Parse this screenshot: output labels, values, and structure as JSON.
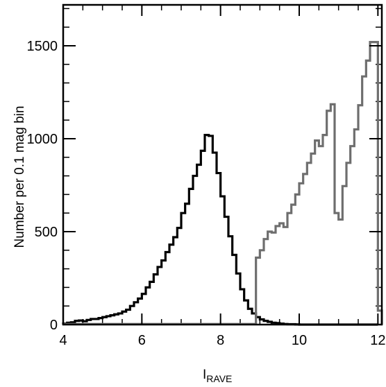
{
  "chart_data": {
    "type": "histogram",
    "xlabel_main": "I",
    "xlabel_sub": "RAVE",
    "ylabel": "Number per 0.1 mag bin",
    "xlim": [
      4,
      12.1
    ],
    "ylim": [
      0,
      1720
    ],
    "x_ticks": [
      4,
      6,
      8,
      10,
      12
    ],
    "y_ticks": [
      0,
      500,
      1000,
      1500
    ],
    "x_minor_step": 0.5,
    "y_minor_step": 100,
    "grid": false,
    "series": [
      {
        "color": "#000000",
        "bin_width": 0.1,
        "bin_starts": [
          4.0,
          4.1,
          4.2,
          4.3,
          4.4,
          4.5,
          4.6,
          4.7,
          4.8,
          4.9,
          5.0,
          5.1,
          5.2,
          5.3,
          5.4,
          5.5,
          5.6,
          5.7,
          5.8,
          5.9,
          6.0,
          6.1,
          6.2,
          6.3,
          6.4,
          6.5,
          6.6,
          6.7,
          6.8,
          6.9,
          7.0,
          7.1,
          7.2,
          7.3,
          7.4,
          7.5,
          7.6,
          7.7,
          7.8,
          7.9,
          8.0,
          8.1,
          8.2,
          8.3,
          8.4,
          8.5,
          8.6,
          8.7,
          8.8,
          8.9,
          9.0,
          9.1,
          9.2,
          9.3,
          9.4,
          9.5,
          9.6,
          9.7,
          9.8,
          9.9,
          10.0,
          10.1,
          10.2,
          10.3,
          10.4,
          10.5,
          10.6,
          10.7,
          10.8,
          10.9,
          11.0,
          11.1,
          11.2,
          11.3,
          11.4,
          11.5,
          11.6,
          11.7,
          11.8,
          11.9
        ],
        "counts": [
          5,
          10,
          12,
          20,
          22,
          18,
          25,
          30,
          30,
          35,
          40,
          45,
          50,
          55,
          60,
          70,
          80,
          100,
          120,
          140,
          165,
          200,
          230,
          270,
          310,
          345,
          390,
          430,
          470,
          520,
          600,
          650,
          730,
          800,
          860,
          935,
          1020,
          1015,
          925,
          815,
          690,
          580,
          475,
          375,
          275,
          190,
          130,
          85,
          60,
          40,
          28,
          20,
          15,
          10,
          8,
          5,
          3,
          2,
          2,
          1,
          0,
          0,
          0,
          0,
          0,
          0,
          0,
          0,
          0,
          0,
          0,
          0,
          0,
          0,
          0,
          0,
          0,
          0,
          0,
          0
        ]
      },
      {
        "color": "#6e6e6e",
        "bin_width": 0.1,
        "bin_starts": [
          4.0,
          4.1,
          4.2,
          4.3,
          4.4,
          4.5,
          4.6,
          4.7,
          4.8,
          4.9,
          5.0,
          5.1,
          5.2,
          5.3,
          5.4,
          5.5,
          5.6,
          5.7,
          5.8,
          5.9,
          6.0,
          6.1,
          6.2,
          6.3,
          6.4,
          6.5,
          6.6,
          6.7,
          6.8,
          6.9,
          7.0,
          7.1,
          7.2,
          7.3,
          7.4,
          7.5,
          7.6,
          7.7,
          7.8,
          7.9,
          8.0,
          8.1,
          8.2,
          8.3,
          8.4,
          8.5,
          8.6,
          8.7,
          8.8,
          8.9,
          9.0,
          9.1,
          9.2,
          9.3,
          9.4,
          9.5,
          9.6,
          9.7,
          9.8,
          9.9,
          10.0,
          10.1,
          10.2,
          10.3,
          10.4,
          10.5,
          10.6,
          10.7,
          10.8,
          10.9,
          11.0,
          11.1,
          11.2,
          11.3,
          11.4,
          11.5,
          11.6,
          11.7,
          11.8,
          11.9
        ],
        "counts": [
          0,
          0,
          0,
          0,
          0,
          0,
          0,
          0,
          0,
          0,
          0,
          0,
          0,
          0,
          0,
          0,
          0,
          0,
          0,
          0,
          0,
          0,
          0,
          0,
          0,
          0,
          0,
          0,
          0,
          0,
          0,
          0,
          0,
          0,
          0,
          0,
          0,
          0,
          0,
          0,
          0,
          0,
          0,
          0,
          0,
          0,
          0,
          0,
          0,
          0,
          0,
          0,
          0,
          0,
          0,
          0,
          0,
          0,
          0,
          0,
          0,
          0,
          0,
          0,
          0,
          0,
          0,
          0,
          0,
          0,
          0,
          0,
          0,
          0,
          0,
          0,
          0,
          0,
          0,
          0
        ],
        "segments": [
          {
            "x_start": 4.0,
            "x_end": 8.9,
            "count": 3
          },
          {
            "x_start": 8.9,
            "x_end": 9.0,
            "count": 360
          },
          {
            "x_start": 9.0,
            "x_end": 9.1,
            "count": 400
          },
          {
            "x_start": 9.1,
            "x_end": 9.2,
            "count": 460
          },
          {
            "x_start": 9.2,
            "x_end": 9.3,
            "count": 500
          },
          {
            "x_start": 9.3,
            "x_end": 9.4,
            "count": 495
          },
          {
            "x_start": 9.4,
            "x_end": 9.5,
            "count": 530
          },
          {
            "x_start": 9.5,
            "x_end": 9.6,
            "count": 545
          },
          {
            "x_start": 9.6,
            "x_end": 9.7,
            "count": 525
          },
          {
            "x_start": 9.7,
            "x_end": 9.8,
            "count": 600
          },
          {
            "x_start": 9.8,
            "x_end": 9.9,
            "count": 645
          },
          {
            "x_start": 9.9,
            "x_end": 10.0,
            "count": 700
          },
          {
            "x_start": 10.0,
            "x_end": 10.1,
            "count": 760
          },
          {
            "x_start": 10.1,
            "x_end": 10.2,
            "count": 810
          },
          {
            "x_start": 10.2,
            "x_end": 10.3,
            "count": 870
          },
          {
            "x_start": 10.3,
            "x_end": 10.4,
            "count": 920
          },
          {
            "x_start": 10.4,
            "x_end": 10.5,
            "count": 990
          },
          {
            "x_start": 10.5,
            "x_end": 10.6,
            "count": 960
          },
          {
            "x_start": 10.6,
            "x_end": 10.7,
            "count": 1020
          },
          {
            "x_start": 10.7,
            "x_end": 10.8,
            "count": 1150
          },
          {
            "x_start": 10.8,
            "x_end": 10.9,
            "count": 1185
          },
          {
            "x_start": 10.9,
            "x_end": 11.0,
            "count": 600
          },
          {
            "x_start": 11.0,
            "x_end": 11.1,
            "count": 565
          },
          {
            "x_start": 11.1,
            "x_end": 11.2,
            "count": 745
          },
          {
            "x_start": 11.2,
            "x_end": 11.3,
            "count": 870
          },
          {
            "x_start": 11.3,
            "x_end": 11.4,
            "count": 960
          },
          {
            "x_start": 11.4,
            "x_end": 11.5,
            "count": 1050
          },
          {
            "x_start": 11.5,
            "x_end": 11.6,
            "count": 1180
          },
          {
            "x_start": 11.6,
            "x_end": 11.7,
            "count": 1335
          },
          {
            "x_start": 11.7,
            "x_end": 11.8,
            "count": 1420
          },
          {
            "x_start": 11.8,
            "x_end": 11.9,
            "count": 1520
          },
          {
            "x_start": 11.9,
            "x_end": 12.0,
            "count": 1520
          },
          {
            "x_start": 12.0,
            "x_end": 12.1,
            "count": 75
          }
        ]
      }
    ]
  }
}
